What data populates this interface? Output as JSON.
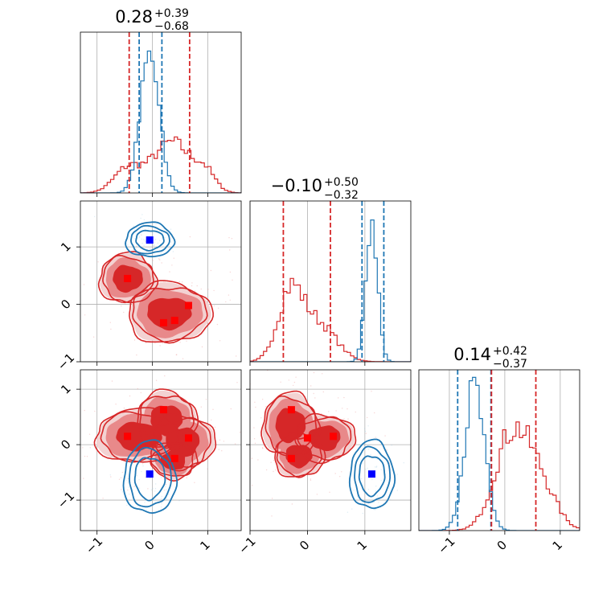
{
  "chart_data": {
    "type": "scatter",
    "subtype": "corner-plot",
    "parameters": 3,
    "series": [
      {
        "color": "#d62728"
      },
      {
        "color": "#1f77b4"
      }
    ],
    "titles": [
      {
        "median": "0.28",
        "plus": "+0.39",
        "minus": "−0.68"
      },
      {
        "median": "−0.10",
        "plus": "+0.50",
        "minus": "−0.32"
      },
      {
        "median": "0.14",
        "plus": "+0.42",
        "minus": "−0.37"
      }
    ],
    "ranges": [
      [
        -1.3,
        1.6
      ],
      [
        -1.0,
        1.8
      ],
      [
        -1.55,
        1.35
      ]
    ],
    "ticks": [
      {
        "values": [
          -1,
          0,
          1
        ],
        "labels": [
          "−1",
          "0",
          "1"
        ]
      },
      {
        "values": [
          -1,
          0,
          1
        ],
        "labels": [
          "−1",
          "0",
          "1"
        ]
      },
      {
        "values": [
          -1,
          0,
          1
        ],
        "labels": [
          "−1",
          "0",
          "1"
        ]
      }
    ],
    "quantile_lines": {
      "red": [
        [
          -0.42,
          0.67
        ],
        [
          -0.42,
          0.4
        ],
        [
          -0.24,
          0.56
        ]
      ],
      "blue": [
        [
          -0.24,
          0.17
        ],
        [
          0.95,
          1.33
        ],
        [
          -0.85,
          -0.25
        ]
      ]
    },
    "red_modes": [
      [
        -0.45,
        0.45
      ],
      [
        0.2,
        -0.32
      ],
      [
        0.4,
        -0.28
      ],
      [
        0.65,
        -0.02
      ]
    ],
    "red_markers_13": [
      [
        -0.45,
        0.15
      ],
      [
        0.2,
        0.63
      ],
      [
        0.65,
        0.12
      ],
      [
        0.4,
        -0.25
      ]
    ],
    "red_markers_23": [
      [
        -0.28,
        0.63
      ],
      [
        -0.28,
        -0.25
      ],
      [
        0.0,
        0.12
      ],
      [
        0.45,
        0.15
      ]
    ],
    "blue_markers": [
      [
        -0.05,
        1.12
      ],
      [
        -0.05,
        -0.53
      ],
      [
        1.12,
        -0.53
      ]
    ],
    "marker_red": "#ff0000",
    "marker_blue": "#0000ff",
    "grid": true
  }
}
